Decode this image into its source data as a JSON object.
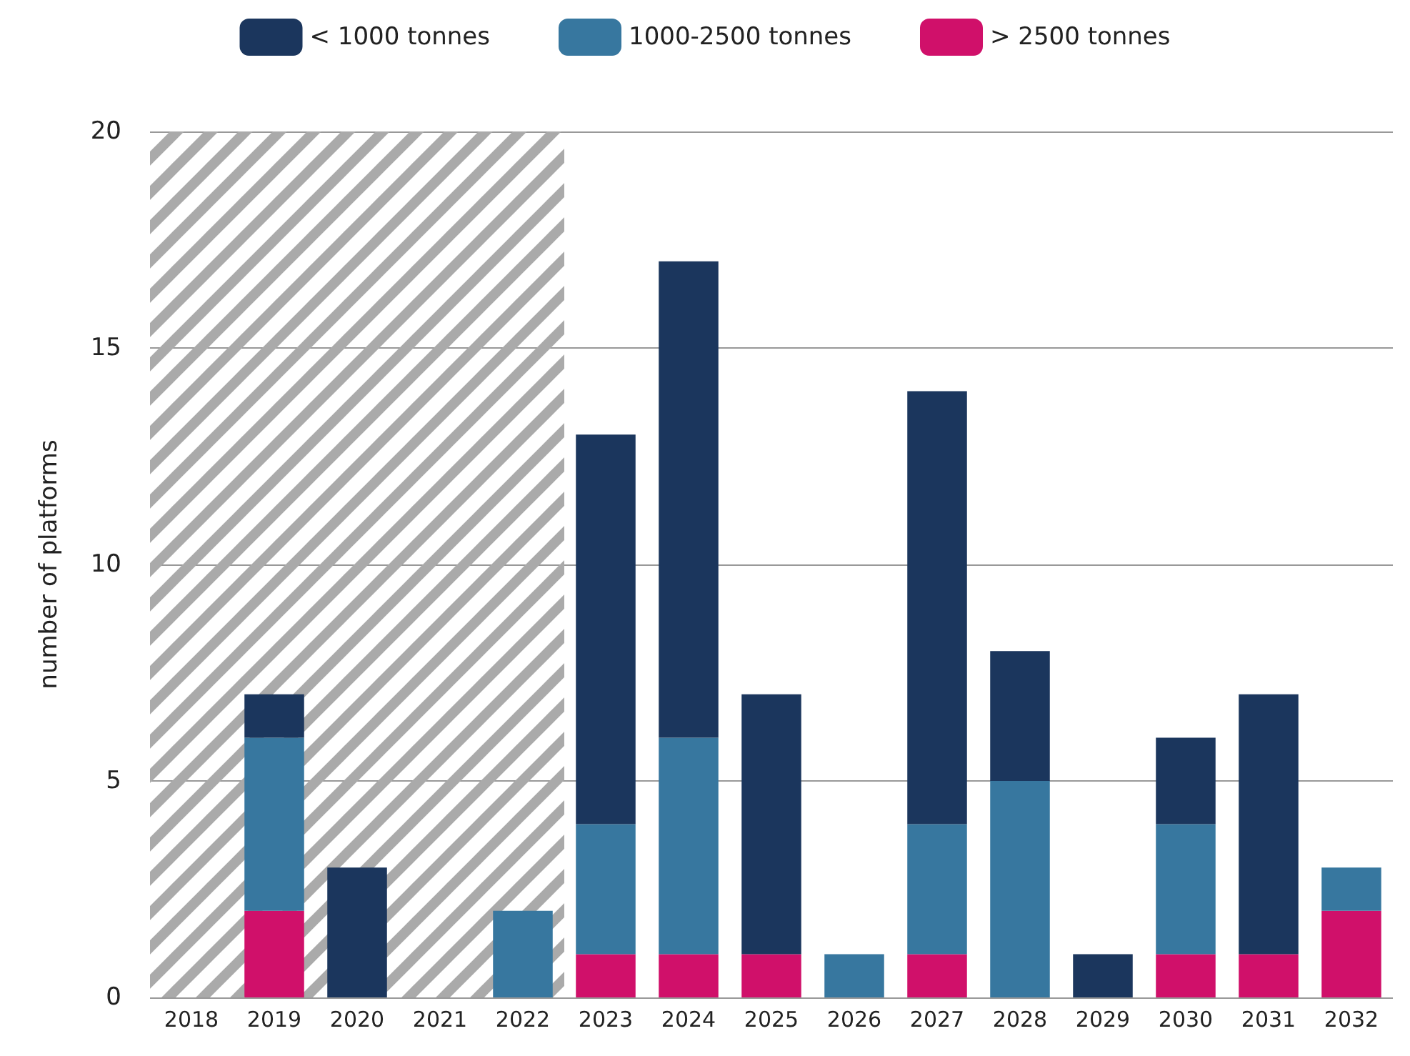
{
  "chart_data": {
    "type": "bar",
    "stacked": true,
    "ylabel": "number of platforms",
    "categories": [
      "2018",
      "2019",
      "2020",
      "2021",
      "2022",
      "2023",
      "2024",
      "2025",
      "2026",
      "2027",
      "2028",
      "2029",
      "2030",
      "2031",
      "2032"
    ],
    "series": [
      {
        "name": "> 2500 tonnes",
        "color": "#d0106a",
        "values": [
          0,
          2,
          0,
          0,
          0,
          1,
          1,
          1,
          0,
          1,
          0,
          0,
          1,
          1,
          2
        ]
      },
      {
        "name": "1000-2500 tonnes",
        "color": "#37779f",
        "values": [
          0,
          4,
          0,
          0,
          2,
          3,
          5,
          0,
          1,
          3,
          5,
          0,
          3,
          0,
          1
        ]
      },
      {
        "name": "< 1000 tonnes",
        "color": "#1b365d",
        "values": [
          0,
          1,
          3,
          0,
          0,
          9,
          11,
          6,
          0,
          10,
          3,
          1,
          2,
          6,
          0
        ]
      }
    ],
    "ylim": [
      0,
      20
    ],
    "yticks": [
      0,
      5,
      10,
      15,
      20
    ],
    "grid": "y",
    "legend": "top",
    "bands": [
      {
        "axis": "x",
        "from": "2018",
        "to": "2022",
        "color": "#aaaaaa"
      }
    ]
  }
}
